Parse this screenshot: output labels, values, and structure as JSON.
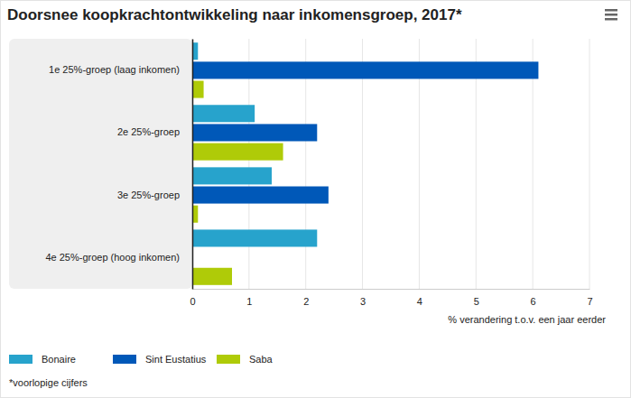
{
  "chart_data": {
    "type": "bar",
    "orientation": "horizontal",
    "title": "Doorsnee koopkrachtontwikkeling naar inkomensgroep, 2017*",
    "x_label": "% verandering t.o.v. een jaar eerder",
    "note": "*voorlopige cijfers",
    "categories": [
      "1e 25%-groep (laag inkomen)",
      "2e 25%-groep",
      "3e 25%-groep",
      "4e 25%-groep (hoog inkomen)"
    ],
    "series": [
      {
        "name": "Bonaire",
        "color": "#27a3cc",
        "values": [
          0.1,
          1.1,
          1.4,
          2.2
        ]
      },
      {
        "name": "Sint Eustatius",
        "color": "#0058b8",
        "values": [
          6.1,
          2.2,
          2.4,
          null
        ]
      },
      {
        "name": "Saba",
        "color": "#afcb08",
        "values": [
          0.2,
          1.6,
          0.1,
          0.7
        ]
      }
    ],
    "xlim": [
      0,
      7
    ],
    "xticks": [
      0,
      1,
      2,
      3,
      4,
      5,
      6,
      7
    ],
    "grid": true,
    "legend": "bottom"
  }
}
